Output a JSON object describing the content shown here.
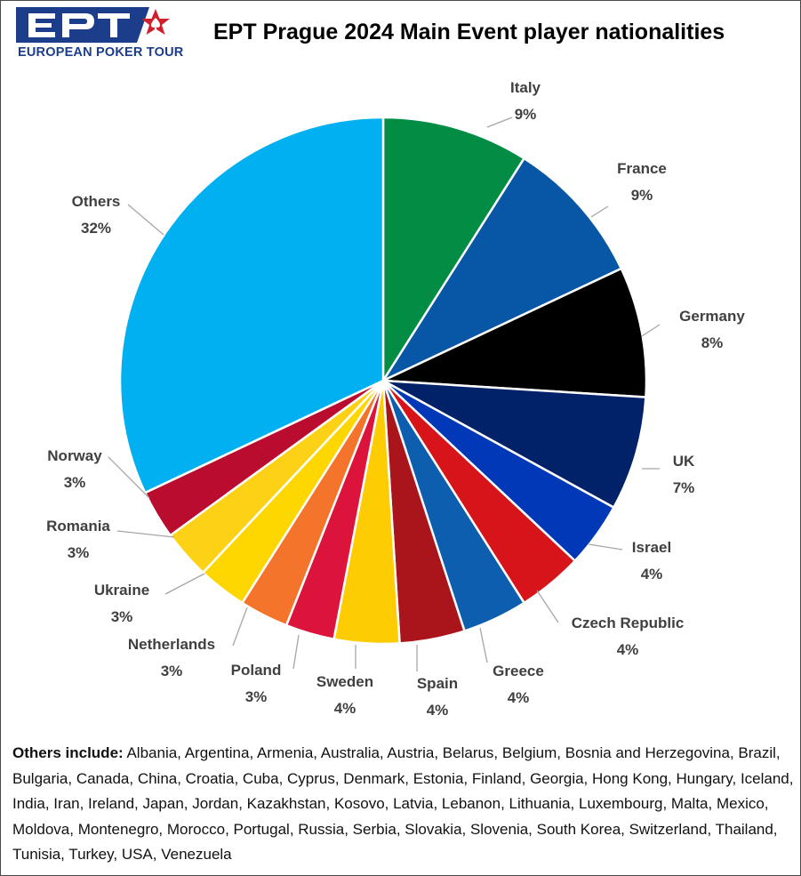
{
  "logo": {
    "letters": "EPT",
    "tagline": "EUROPEAN POKER TOUR",
    "colors": {
      "blue": "#1b3d8a",
      "red": "#d0202e"
    }
  },
  "chart_data": {
    "type": "pie",
    "title": "EPT Prague 2024 Main Event player nationalities",
    "start_angle_deg": 0,
    "direction": "clockwise",
    "slices": [
      {
        "label": "Italy",
        "value": 9,
        "display": "9%",
        "color": "#038c44"
      },
      {
        "label": "France",
        "value": 9,
        "display": "9%",
        "color": "#0857a6"
      },
      {
        "label": "Germany",
        "value": 8,
        "display": "8%",
        "color": "#000000"
      },
      {
        "label": "UK",
        "value": 7,
        "display": "7%",
        "color": "#012169"
      },
      {
        "label": "Israel",
        "value": 4,
        "display": "4%",
        "color": "#0038b8"
      },
      {
        "label": "Czech Republic",
        "value": 4,
        "display": "4%",
        "color": "#d7141a"
      },
      {
        "label": "Greece",
        "value": 4,
        "display": "4%",
        "color": "#0d5eaf"
      },
      {
        "label": "Spain",
        "value": 4,
        "display": "4%",
        "color": "#aa151b"
      },
      {
        "label": "Sweden",
        "value": 4,
        "display": "4%",
        "color": "#fecc02"
      },
      {
        "label": "Poland",
        "value": 3,
        "display": "3%",
        "color": "#dc143c"
      },
      {
        "label": "Netherlands",
        "value": 3,
        "display": "3%",
        "color": "#f4742b"
      },
      {
        "label": "Ukraine",
        "value": 3,
        "display": "3%",
        "color": "#ffd700"
      },
      {
        "label": "Romania",
        "value": 3,
        "display": "3%",
        "color": "#fcd116"
      },
      {
        "label": "Norway",
        "value": 3,
        "display": "3%",
        "color": "#ba0c2f"
      },
      {
        "label": "Others",
        "value": 32,
        "display": "32%",
        "color": "#00b0f0"
      }
    ],
    "legend": "none",
    "slice_border_color": "#ffffff"
  },
  "footnote": {
    "lead": "Others include:",
    "text": " Albania, Argentina, Armenia, Australia, Austria, Belarus, Belgium, Bosnia and Herzegovina, Brazil, Bulgaria, Canada, China, Croatia, Cuba, Cyprus, Denmark, Estonia, Finland, Georgia, Hong Kong, Hungary, Iceland, India, Iran, Ireland, Japan, Jordan, Kazakhstan, Kosovo, Latvia, Lebanon, Lithuania, Luxembourg, Malta, Mexico, Moldova, Montenegro, Morocco, Portugal, Russia, Serbia, Slovakia, Slovenia, South Korea, Switzerland, Thailand, Tunisia, Turkey, USA, Venezuela"
  }
}
